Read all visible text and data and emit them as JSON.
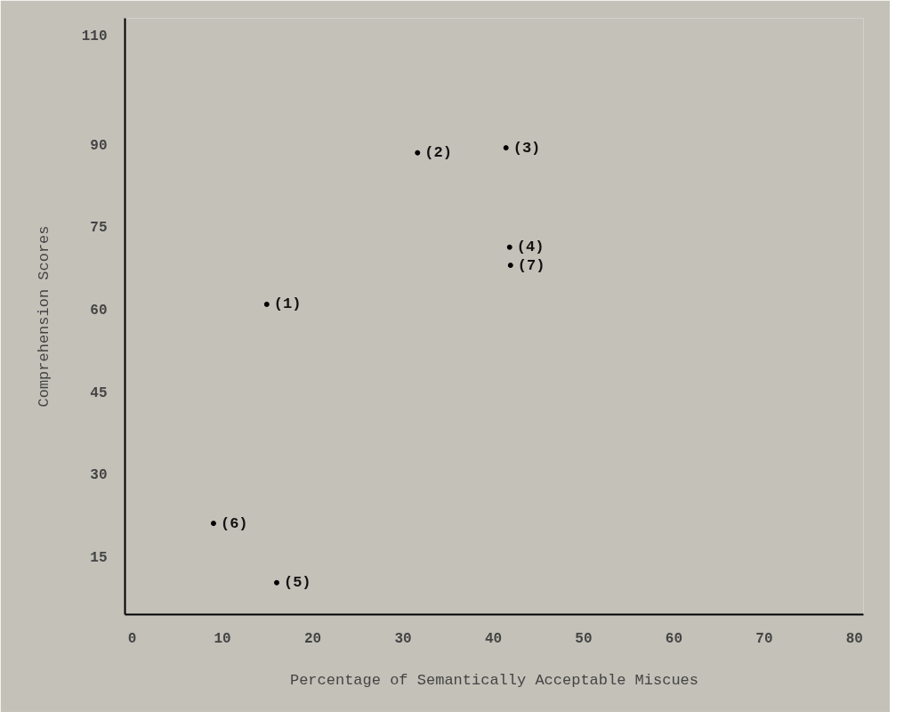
{
  "chart_data": {
    "type": "scatter",
    "xlabel": "Percentage of Semantically Acceptable Miscues",
    "ylabel": "Comprehension Scores",
    "x": [
      14.9,
      31.6,
      41.4,
      41.8,
      16.0,
      9.0,
      41.9
    ],
    "series": [
      {
        "color": "#000000",
        "values": [
          60.9,
          88.5,
          89.4,
          71.3,
          10.2,
          21.0,
          68.0
        ]
      }
    ],
    "annotations": [
      {
        "text": "(1)",
        "x": 14.9,
        "y": 60.9
      },
      {
        "text": "(2)",
        "x": 31.6,
        "y": 88.5
      },
      {
        "text": "(3)",
        "x": 41.4,
        "y": 89.4
      },
      {
        "text": "(4)",
        "x": 41.8,
        "y": 71.3
      },
      {
        "text": "(5)",
        "x": 16.0,
        "y": 10.2
      },
      {
        "text": "(6)",
        "x": 9.0,
        "y": 21.0
      },
      {
        "text": "(7)",
        "x": 41.9,
        "y": 68.0
      }
    ],
    "xlim": [
      -0.8,
      81
    ],
    "ylim": [
      4.4,
      113
    ],
    "xticks": [
      0,
      10,
      20,
      30,
      40,
      50,
      60,
      70,
      80
    ],
    "yticks": [
      15,
      30,
      45,
      60,
      75,
      90,
      110
    ],
    "grid": false,
    "marker": "circle"
  }
}
